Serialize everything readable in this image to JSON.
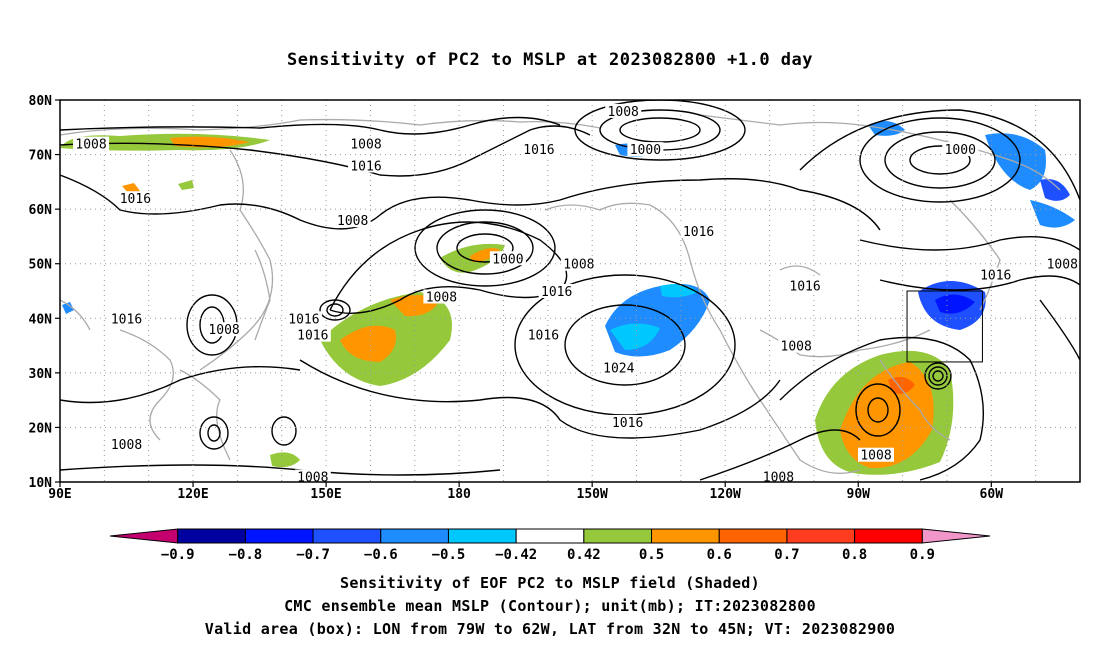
{
  "title": "Sensitivity of PC2 to MSLP at 2023082800 +1.0 day",
  "map": {
    "lat_labels": [
      "80N",
      "70N",
      "60N",
      "50N",
      "40N",
      "30N",
      "20N",
      "10N"
    ],
    "lon_labels": [
      "90E",
      "120E",
      "150E",
      "180",
      "150W",
      "120W",
      "90W",
      "60W"
    ],
    "contour_labels": [
      {
        "text": "1008",
        "lon": 97,
        "lat": 72
      },
      {
        "text": "1008",
        "lon": 159,
        "lat": 72
      },
      {
        "text": "1016",
        "lon": 159,
        "lat": 68
      },
      {
        "text": "1016",
        "lon": 107,
        "lat": 62
      },
      {
        "text": "1008",
        "lon": 156,
        "lat": 58
      },
      {
        "text": "1016",
        "lon": 198,
        "lat": 71
      },
      {
        "text": "1008",
        "lon": 217,
        "lat": 78
      },
      {
        "text": "1000",
        "lon": 222,
        "lat": 71
      },
      {
        "text": "1000",
        "lon": 191,
        "lat": 51
      },
      {
        "text": "1008",
        "lon": 176,
        "lat": 44
      },
      {
        "text": "1008",
        "lon": 207,
        "lat": 50
      },
      {
        "text": "1016",
        "lon": 202,
        "lat": 45
      },
      {
        "text": "1016",
        "lon": 234,
        "lat": 56
      },
      {
        "text": "1016",
        "lon": 105,
        "lat": 40
      },
      {
        "text": "1016",
        "lon": 145,
        "lat": 40
      },
      {
        "text": "1008",
        "lon": 127,
        "lat": 38
      },
      {
        "text": "1016",
        "lon": 147,
        "lat": 37
      },
      {
        "text": "1016",
        "lon": 199,
        "lat": 37
      },
      {
        "text": "1024",
        "lon": 216,
        "lat": 31
      },
      {
        "text": "1008",
        "lon": 256,
        "lat": 35
      },
      {
        "text": "1016",
        "lon": 218,
        "lat": 21
      },
      {
        "text": "1008",
        "lon": 105,
        "lat": 17
      },
      {
        "text": "1008",
        "lon": 147,
        "lat": 11
      },
      {
        "text": "1008",
        "lon": 252,
        "lat": 11
      },
      {
        "text": "1008",
        "lon": 274,
        "lat": 15
      },
      {
        "text": "1000",
        "lon": 293,
        "lat": 71
      },
      {
        "text": "1008",
        "lon": 316,
        "lat": 50
      },
      {
        "text": "1016",
        "lon": 301,
        "lat": 48
      },
      {
        "text": "1016",
        "lon": 258,
        "lat": 46
      }
    ],
    "valid_box": {
      "lon_min": -79,
      "lon_max": -62,
      "lat_min": 32,
      "lat_max": 45
    }
  },
  "colorbar": {
    "colors": [
      "#c4006e",
      "#0000a0",
      "#0014ff",
      "#1e50ff",
      "#1e8cff",
      "#00c8ff",
      "#ffffff",
      "#96c83c",
      "#ff9600",
      "#ff6400",
      "#ff3c1e",
      "#ff0000",
      "#f096c8"
    ],
    "labels": [
      "−0.9",
      "−0.8",
      "−0.7",
      "−0.6",
      "−0.5",
      "−0.42",
      "0.42",
      "0.5",
      "0.6",
      "0.7",
      "0.8",
      "0.9"
    ]
  },
  "captions": {
    "line1": "Sensitivity of EOF PC2 to MSLP field (Shaded)",
    "line2": "CMC ensemble mean MSLP (Contour); unit(mb); IT:2023082800",
    "line3": "Valid area (box): LON from 79W to 62W, LAT from 32N to 45N; VT: 2023082900"
  }
}
